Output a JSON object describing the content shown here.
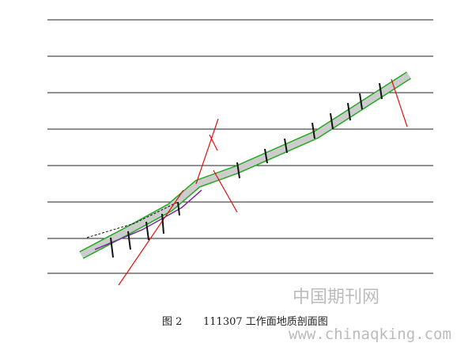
{
  "caption": {
    "label": "图 2",
    "title": "111307 工作面地质剖面图"
  },
  "watermark": {
    "chinese": "中国期刊网",
    "url": "www.chinaqking.com"
  }
}
